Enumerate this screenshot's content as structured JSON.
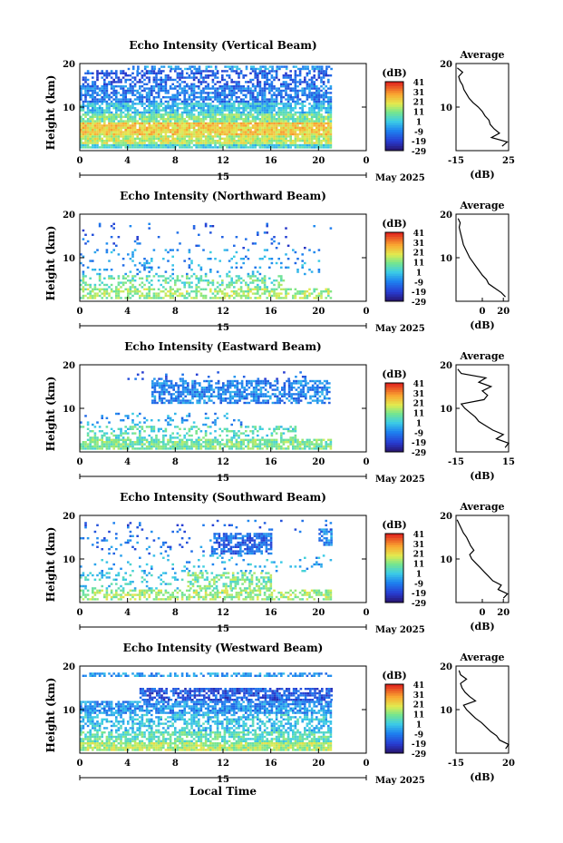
{
  "chart_data": [
    {
      "type": "heatmap",
      "title": "Echo Intensity (Vertical Beam)",
      "ylabel": "Height (km)",
      "xlabel": "",
      "x_ticks": [
        "0",
        "4",
        "8",
        "12",
        "16",
        "20",
        "0"
      ],
      "y_ticks": [
        "20",
        "10"
      ],
      "date_label": "15",
      "month_label": "May 2025",
      "xlim": [
        0,
        24
      ],
      "ylim": [
        0,
        20
      ],
      "data_extent_hours": 21,
      "colorbar": {
        "unit": "(dB)",
        "ticks": [
          "41",
          "31",
          "21",
          "11",
          "1",
          "-9",
          "-19",
          "-29"
        ],
        "range": [
          -29,
          41
        ]
      },
      "profile": {
        "title": "Average",
        "xlabel": "(dB)",
        "x_ticks": [
          "-15",
          "25"
        ],
        "xlim": [
          -15,
          25
        ],
        "y_ticks": [
          "20",
          "10"
        ],
        "heights": [
          1,
          2,
          3,
          4,
          5,
          6,
          7,
          8,
          9,
          10,
          11,
          12,
          13,
          14,
          15,
          16,
          17,
          18,
          19
        ],
        "values": [
          20,
          24,
          12,
          18,
          14,
          11,
          10,
          7,
          5,
          2,
          -2,
          -5,
          -7,
          -9,
          -10,
          -12,
          -13,
          -10,
          -14
        ]
      },
      "bands": [
        {
          "y0": 0.5,
          "y1": 1.5,
          "level": 0.45,
          "start": 0,
          "end": 21,
          "cov": 0.95
        },
        {
          "y0": 1.5,
          "y1": 3.5,
          "level": 0.65,
          "start": 0,
          "end": 21,
          "cov": 0.92
        },
        {
          "y0": 3.5,
          "y1": 6.5,
          "level": 0.74,
          "start": 0,
          "end": 21,
          "cov": 0.95
        },
        {
          "y0": 6.5,
          "y1": 8.5,
          "level": 0.55,
          "start": 0,
          "end": 21,
          "cov": 0.9
        },
        {
          "y0": 8.5,
          "y1": 11,
          "level": 0.4,
          "start": 0,
          "end": 21,
          "cov": 0.82
        },
        {
          "y0": 11,
          "y1": 15,
          "level": 0.26,
          "start": 0,
          "end": 21,
          "cov": 0.7
        },
        {
          "y0": 15,
          "y1": 18.5,
          "level": 0.2,
          "start": 0,
          "end": 21,
          "cov": 0.5
        },
        {
          "y0": 18.5,
          "y1": 19.5,
          "level": 0.33,
          "start": 4,
          "end": 21,
          "cov": 0.55
        }
      ]
    },
    {
      "type": "heatmap",
      "title": "Echo Intensity (Northward Beam)",
      "ylabel": "Height (km)",
      "xlabel": "",
      "x_ticks": [
        "0",
        "4",
        "8",
        "12",
        "16",
        "20",
        "0"
      ],
      "y_ticks": [
        "20",
        "10"
      ],
      "date_label": "15",
      "month_label": "May 2025",
      "xlim": [
        0,
        24
      ],
      "ylim": [
        0,
        20
      ],
      "data_extent_hours": 21,
      "colorbar": {
        "unit": "(dB)",
        "ticks": [
          "41",
          "31",
          "21",
          "11",
          "1",
          "-9",
          "-19",
          "-29"
        ],
        "range": [
          -29,
          41
        ]
      },
      "profile": {
        "title": "Average",
        "xlabel": "(dB)",
        "x_ticks": [
          "0",
          "20"
        ],
        "xlim": [
          -25,
          25
        ],
        "y_ticks": [
          "20",
          "10"
        ],
        "heights": [
          1,
          2,
          3,
          4,
          5,
          6,
          7,
          8,
          9,
          10,
          11,
          12,
          13,
          14,
          15,
          16,
          17,
          18,
          19
        ],
        "values": [
          22,
          18,
          12,
          6,
          4,
          0,
          -3,
          -6,
          -9,
          -12,
          -14,
          -16,
          -18,
          -19,
          -20,
          -21,
          -22,
          -21,
          -23
        ]
      },
      "bands": [
        {
          "y0": 0.5,
          "y1": 3,
          "level": 0.6,
          "start": 0,
          "end": 21,
          "cov": 0.6
        },
        {
          "y0": 3,
          "y1": 6,
          "level": 0.52,
          "start": 0,
          "end": 17,
          "cov": 0.38
        },
        {
          "y0": 6,
          "y1": 12,
          "level": 0.32,
          "start": 0,
          "end": 20,
          "cov": 0.12
        },
        {
          "y0": 12,
          "y1": 18,
          "level": 0.2,
          "start": 0,
          "end": 21,
          "cov": 0.04
        }
      ]
    },
    {
      "type": "heatmap",
      "title": "Echo Intensity (Eastward Beam)",
      "ylabel": "Height (km)",
      "xlabel": "",
      "x_ticks": [
        "0",
        "4",
        "8",
        "12",
        "16",
        "20",
        "0"
      ],
      "y_ticks": [
        "20",
        "10"
      ],
      "date_label": "15",
      "month_label": "May 2025",
      "xlim": [
        0,
        24
      ],
      "ylim": [
        0,
        20
      ],
      "data_extent_hours": 21,
      "colorbar": {
        "unit": "(dB)",
        "ticks": [
          "41",
          "31",
          "21",
          "11",
          "1",
          "-9",
          "-19",
          "-29"
        ],
        "range": [
          -29,
          41
        ]
      },
      "profile": {
        "title": "Average",
        "xlabel": "(dB)",
        "x_ticks": [
          "-15",
          "15"
        ],
        "xlim": [
          -15,
          15
        ],
        "y_ticks": [
          "20",
          "10"
        ],
        "heights": [
          1,
          2,
          3,
          4,
          5,
          6,
          7,
          8,
          9,
          10,
          11,
          12,
          13,
          14,
          15,
          16,
          17,
          18,
          19
        ],
        "values": [
          13,
          15,
          8,
          12,
          6,
          2,
          -2,
          -4,
          -7,
          -10,
          -12,
          1,
          3,
          0,
          5,
          -2,
          2,
          -12,
          -14
        ]
      },
      "bands": [
        {
          "y0": 0.5,
          "y1": 3,
          "level": 0.55,
          "start": 0,
          "end": 21,
          "cov": 0.85
        },
        {
          "y0": 3,
          "y1": 6,
          "level": 0.48,
          "start": 0,
          "end": 18,
          "cov": 0.35
        },
        {
          "y0": 6,
          "y1": 9,
          "level": 0.32,
          "start": 0,
          "end": 14,
          "cov": 0.15
        },
        {
          "y0": 11,
          "y1": 16.5,
          "level": 0.28,
          "start": 6,
          "end": 21,
          "cov": 0.65
        },
        {
          "y0": 16.5,
          "y1": 18.5,
          "level": 0.22,
          "start": 3,
          "end": 19,
          "cov": 0.1
        }
      ]
    },
    {
      "type": "heatmap",
      "title": "Echo Intensity (Southward Beam)",
      "ylabel": "Height (km)",
      "xlabel": "",
      "x_ticks": [
        "0",
        "4",
        "8",
        "12",
        "16",
        "20",
        "0"
      ],
      "y_ticks": [
        "20",
        "10"
      ],
      "date_label": "15",
      "month_label": "May 2025",
      "xlim": [
        0,
        24
      ],
      "ylim": [
        0,
        20
      ],
      "data_extent_hours": 21,
      "colorbar": {
        "unit": "(dB)",
        "ticks": [
          "41",
          "31",
          "21",
          "11",
          "1",
          "-9",
          "-19",
          "-29"
        ],
        "range": [
          -29,
          41
        ]
      },
      "profile": {
        "title": "Average",
        "xlabel": "(dB)",
        "x_ticks": [
          "0",
          "20"
        ],
        "xlim": [
          -25,
          25
        ],
        "y_ticks": [
          "20",
          "10"
        ],
        "heights": [
          1,
          2,
          3,
          4,
          5,
          6,
          7,
          8,
          9,
          10,
          11,
          12,
          13,
          14,
          15,
          16,
          17,
          18,
          19
        ],
        "values": [
          20,
          24,
          15,
          18,
          10,
          6,
          2,
          -2,
          -6,
          -10,
          -12,
          -8,
          -11,
          -13,
          -15,
          -18,
          -20,
          -22,
          -24
        ]
      },
      "bands": [
        {
          "y0": 0.5,
          "y1": 3,
          "level": 0.6,
          "start": 0,
          "end": 21,
          "cov": 0.55
        },
        {
          "y0": 3,
          "y1": 7,
          "level": 0.55,
          "start": 9,
          "end": 16,
          "cov": 0.55
        },
        {
          "y0": 3,
          "y1": 7,
          "level": 0.42,
          "start": 0,
          "end": 9,
          "cov": 0.2
        },
        {
          "y0": 7,
          "y1": 11,
          "level": 0.35,
          "start": 0,
          "end": 21,
          "cov": 0.12
        },
        {
          "y0": 11,
          "y1": 16,
          "level": 0.22,
          "start": 11,
          "end": 16,
          "cov": 0.75
        },
        {
          "y0": 11,
          "y1": 16,
          "level": 0.25,
          "start": 0,
          "end": 11,
          "cov": 0.08
        },
        {
          "y0": 13,
          "y1": 17,
          "level": 0.3,
          "start": 20,
          "end": 21,
          "cov": 0.6
        },
        {
          "y0": 16,
          "y1": 19,
          "level": 0.2,
          "start": 0,
          "end": 21,
          "cov": 0.05
        }
      ]
    },
    {
      "type": "heatmap",
      "title": "Echo Intensity (Westward Beam)",
      "ylabel": "Height (km)",
      "xlabel": "Local Time",
      "x_ticks": [
        "0",
        "4",
        "8",
        "12",
        "16",
        "20",
        "0"
      ],
      "y_ticks": [
        "20",
        "10"
      ],
      "date_label": "15",
      "month_label": "May 2025",
      "xlim": [
        0,
        24
      ],
      "ylim": [
        0,
        20
      ],
      "data_extent_hours": 21,
      "colorbar": {
        "unit": "(dB)",
        "ticks": [
          "41",
          "31",
          "21",
          "11",
          "1",
          "-9",
          "-19",
          "-29"
        ],
        "range": [
          -29,
          41
        ]
      },
      "profile": {
        "title": "Average",
        "xlabel": "(dB)",
        "x_ticks": [
          "-15",
          "20"
        ],
        "xlim": [
          -15,
          20
        ],
        "y_ticks": [
          "20",
          "10"
        ],
        "heights": [
          1,
          2,
          3,
          4,
          5,
          6,
          7,
          8,
          9,
          10,
          11,
          12,
          13,
          14,
          15,
          16,
          17,
          18,
          19
        ],
        "values": [
          18,
          20,
          14,
          12,
          8,
          5,
          2,
          -2,
          -5,
          -8,
          -10,
          -2,
          -6,
          -9,
          -11,
          -12,
          -8,
          -12,
          -13
        ]
      },
      "bands": [
        {
          "y0": 0.5,
          "y1": 2.5,
          "level": 0.62,
          "start": 0,
          "end": 21,
          "cov": 0.9
        },
        {
          "y0": 2.5,
          "y1": 5,
          "level": 0.5,
          "start": 0,
          "end": 21,
          "cov": 0.75
        },
        {
          "y0": 5,
          "y1": 9,
          "level": 0.4,
          "start": 0,
          "end": 21,
          "cov": 0.55
        },
        {
          "y0": 9,
          "y1": 12,
          "level": 0.3,
          "start": 0,
          "end": 21,
          "cov": 0.8
        },
        {
          "y0": 12,
          "y1": 15,
          "level": 0.18,
          "start": 5,
          "end": 21,
          "cov": 0.75
        },
        {
          "y0": 17.5,
          "y1": 18.5,
          "level": 0.32,
          "start": 0,
          "end": 21,
          "cov": 0.6
        }
      ]
    }
  ]
}
